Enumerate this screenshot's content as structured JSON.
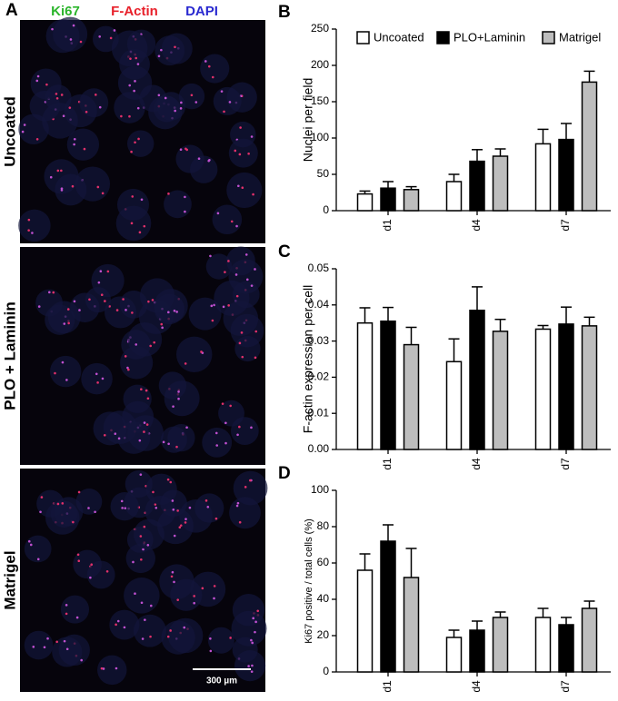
{
  "figure": {
    "panel_label": "A",
    "stains": [
      "Ki67",
      "F-Actin",
      "DAPI"
    ],
    "rows": [
      "Uncoated",
      "PLO + Laminin",
      "Matrigel"
    ],
    "scale_bar": "300 µm"
  },
  "chart_data": [
    {
      "type": "bar",
      "panel_label": "B",
      "y_label": "Nuclei per field",
      "categories": [
        "d1",
        "d4",
        "d7"
      ],
      "ylim": [
        0,
        250
      ],
      "yticks": [
        0,
        50,
        100,
        150,
        200,
        250
      ],
      "legend": "top",
      "series": [
        {
          "name": "Uncoated",
          "color": "#ffffff",
          "values": [
            23,
            40,
            92
          ],
          "errors": [
            4,
            10,
            20
          ]
        },
        {
          "name": "PLO+Laminin",
          "color": "#000000",
          "values": [
            31,
            68,
            98
          ],
          "errors": [
            9,
            16,
            22
          ]
        },
        {
          "name": "Matrigel",
          "color": "#bdbdbd",
          "values": [
            29,
            75,
            177
          ],
          "errors": [
            4,
            10,
            15
          ]
        }
      ]
    },
    {
      "type": "bar",
      "panel_label": "C",
      "y_label": "F-actin expression per cell",
      "categories": [
        "d1",
        "d4",
        "d7"
      ],
      "ylim": [
        0,
        0.05
      ],
      "yticks": [
        {
          "value": 0,
          "label": "0.00"
        },
        0.01,
        0.02,
        0.03,
        0.04,
        0.05
      ],
      "series": [
        {
          "color": "#ffffff",
          "values": [
            0.035,
            0.0243,
            0.0333
          ],
          "errors": [
            0.0042,
            0.0063,
            0.001
          ]
        },
        {
          "color": "#000000",
          "values": [
            0.0355,
            0.0385,
            0.0347
          ],
          "errors": [
            0.0038,
            0.0065,
            0.0047
          ]
        },
        {
          "color": "#bdbdbd",
          "values": [
            0.029,
            0.0327,
            0.0342
          ],
          "errors": [
            0.0048,
            0.0033,
            0.0024
          ]
        }
      ]
    },
    {
      "type": "bar",
      "panel_label": "D",
      "y_label": "Ki67 positive / total cells (%)",
      "categories": [
        "d1",
        "d4",
        "d7"
      ],
      "ylim": [
        0,
        100
      ],
      "yticks": [
        0,
        20,
        40,
        60,
        80,
        100
      ],
      "series": [
        {
          "color": "#ffffff",
          "values": [
            56,
            19,
            30
          ],
          "errors": [
            9,
            4,
            5
          ]
        },
        {
          "color": "#000000",
          "values": [
            72,
            23,
            26
          ],
          "errors": [
            9,
            5,
            4
          ]
        },
        {
          "color": "#bdbdbd",
          "values": [
            52,
            30,
            35
          ],
          "errors": [
            16,
            3,
            4
          ]
        }
      ]
    }
  ]
}
